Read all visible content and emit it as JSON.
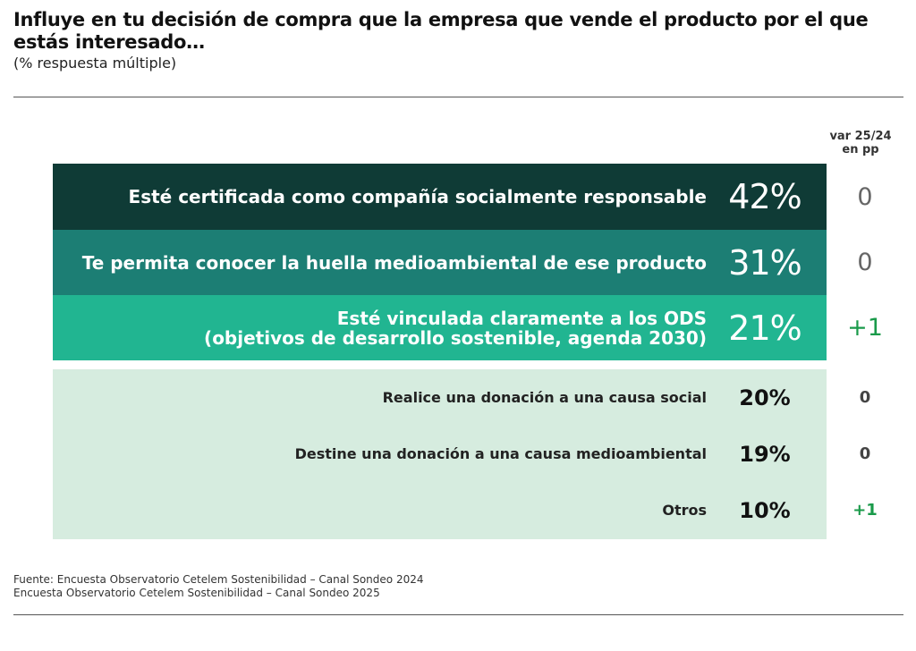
{
  "header": {
    "title": "Influye en tu decisión de compra que la empresa que vende el producto por el que estás interesado…",
    "subtitle": "(% respuesta múltiple)",
    "var_header_line1": "var 25/24",
    "var_header_line2": "en pp"
  },
  "colors": {
    "row1": "#0f3b36",
    "row2": "#1c7e74",
    "row3": "#21b591",
    "rows_light": "#d6ecdf",
    "positive_var": "#1a9a4a"
  },
  "chart_data": {
    "type": "table",
    "title": "Influye en tu decisión de compra que la empresa que vende el producto por el que estás interesado…",
    "subtitle": "(% respuesta múltiple)",
    "columns": [
      "",
      "",
      "var 25/24 en pp"
    ],
    "rows": [
      {
        "label_lines": [
          "Esté certificada como compañía socialmente responsable"
        ],
        "value": "42%",
        "var": "0",
        "highlight": true
      },
      {
        "label_lines": [
          "Te permita conocer la huella medioambiental de ese producto"
        ],
        "value": "31%",
        "var": "0",
        "highlight": true
      },
      {
        "label_lines": [
          "Esté vinculada claramente a los ODS",
          "(objetivos de desarrollo sostenible, agenda 2030)"
        ],
        "value": "21%",
        "var": "+1",
        "highlight": true
      },
      {
        "label_lines": [
          "Realice una donación a una causa social"
        ],
        "value": "20%",
        "var": "0",
        "highlight": false
      },
      {
        "label_lines": [
          "Destine una donación a una causa medioambiental"
        ],
        "value": "19%",
        "var": "0",
        "highlight": false
      },
      {
        "label_lines": [
          "Otros"
        ],
        "value": "10%",
        "var": "+1",
        "highlight": false
      }
    ]
  },
  "footer": {
    "source_line1": "Fuente: Encuesta Observatorio Cetelem Sostenibilidad – Canal Sondeo 2024",
    "source_line2": "Encuesta Observatorio Cetelem Sostenibilidad – Canal Sondeo 2025"
  }
}
